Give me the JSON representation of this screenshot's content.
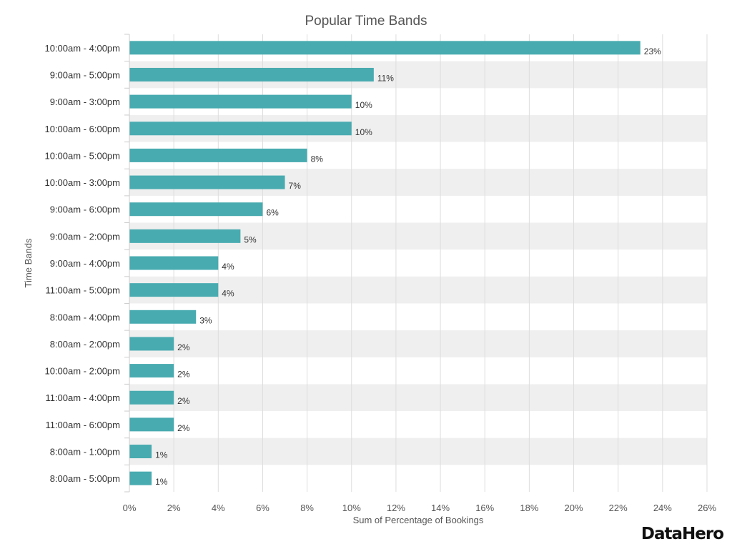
{
  "chart_data": {
    "type": "bar",
    "orientation": "horizontal",
    "title": "Popular Time Bands",
    "xlabel": "Sum of Percentage of Bookings",
    "ylabel": "Time Bands",
    "categories": [
      "10:00am - 4:00pm",
      "9:00am - 5:00pm",
      "9:00am - 3:00pm",
      "10:00am - 6:00pm",
      "10:00am - 5:00pm",
      "10:00am - 3:00pm",
      "9:00am - 6:00pm",
      "9:00am - 2:00pm",
      "9:00am - 4:00pm",
      "11:00am - 5:00pm",
      "8:00am - 4:00pm",
      "8:00am - 2:00pm",
      "10:00am - 2:00pm",
      "11:00am - 4:00pm",
      "11:00am - 6:00pm",
      "8:00am - 1:00pm",
      "8:00am - 5:00pm"
    ],
    "values": [
      23,
      11,
      10,
      10,
      8,
      7,
      6,
      5,
      4,
      4,
      3,
      2,
      2,
      2,
      2,
      1,
      1
    ],
    "data_labels": [
      "23%",
      "11%",
      "10%",
      "10%",
      "8%",
      "7%",
      "6%",
      "5%",
      "4%",
      "4%",
      "3%",
      "2%",
      "2%",
      "2%",
      "2%",
      "1%",
      "1%"
    ],
    "xlim": [
      0,
      26
    ],
    "xticks": [
      0,
      2,
      4,
      6,
      8,
      10,
      12,
      14,
      16,
      18,
      20,
      22,
      24,
      26
    ],
    "xtick_labels": [
      "0%",
      "2%",
      "4%",
      "6%",
      "8%",
      "10%",
      "12%",
      "14%",
      "16%",
      "18%",
      "20%",
      "22%",
      "24%",
      "26%"
    ],
    "grid": true,
    "alternating_row_bands": true,
    "legend": "none",
    "bar_color": "#48abb0",
    "band_color": "#efefef",
    "grid_color": "#dddddd"
  },
  "brand": {
    "logo_text": "DataHero"
  }
}
